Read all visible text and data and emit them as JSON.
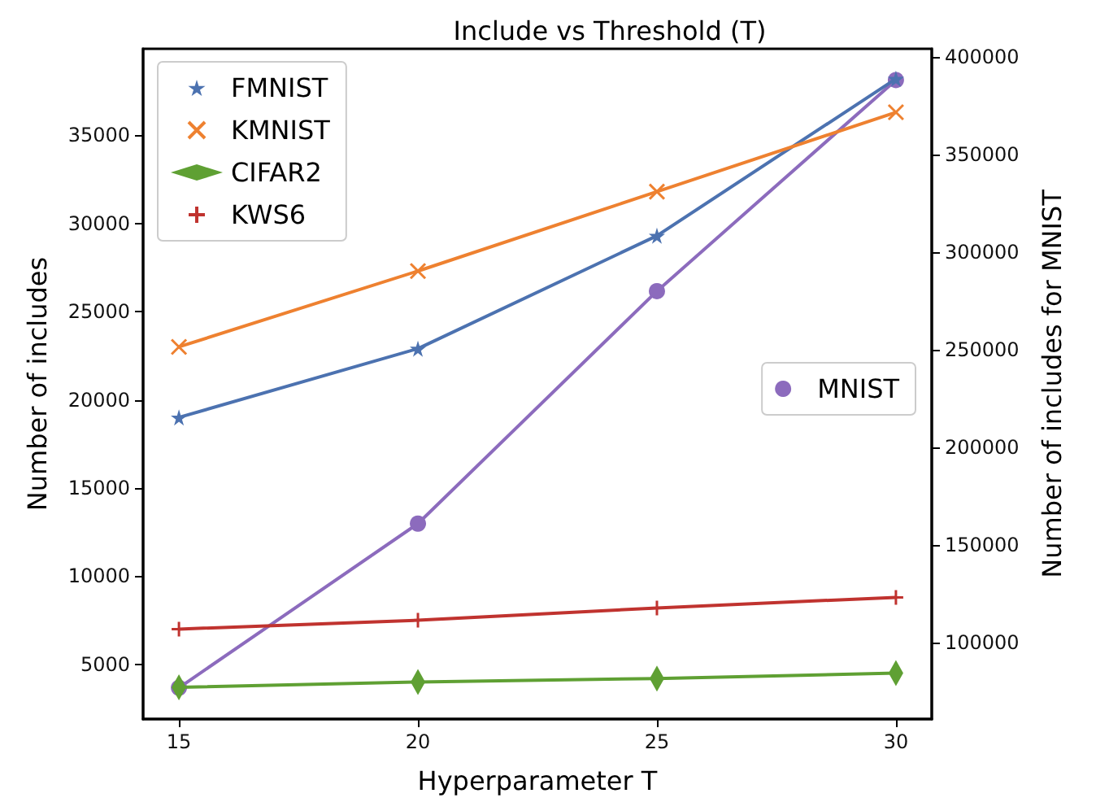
{
  "chart_data": {
    "type": "line",
    "title": "Include vs Threshold (T)",
    "xlabel": "Hyperparameter T",
    "ylabel": "Number of includes",
    "y2label": "Number of includes for MNIST",
    "x": [
      15,
      20,
      25,
      30
    ],
    "xlim": [
      14.25,
      30.75
    ],
    "xticks": [
      15,
      20,
      25,
      30
    ],
    "ylim": [
      1900,
      39900
    ],
    "yticks": [
      5000,
      10000,
      15000,
      20000,
      25000,
      30000,
      35000
    ],
    "y2lim": [
      61000,
      404000
    ],
    "y2ticks": [
      100000,
      150000,
      200000,
      250000,
      300000,
      350000,
      400000
    ],
    "grid": false,
    "legend": "top left",
    "series": [
      {
        "name": "FMNIST",
        "color": "#4c72b0",
        "marker": "star",
        "values": [
          19000,
          22900,
          29300,
          38200
        ]
      },
      {
        "name": "KMNIST",
        "color": "#ee8130",
        "marker": "cross",
        "values": [
          23000,
          27300,
          31800,
          36300
        ]
      },
      {
        "name": "CIFAR2",
        "color": "#5fa033",
        "marker": "diamond",
        "values": [
          3700,
          4000,
          4200,
          4500
        ]
      },
      {
        "name": "KWS6",
        "color": "#c0332f",
        "marker": "plus",
        "values": [
          7000,
          7500,
          8200,
          8800
        ]
      },
      {
        "name": "MNIST",
        "color": "#8c6bbd",
        "marker": "circle",
        "axis": "y2",
        "values": [
          77000,
          161000,
          280000,
          388000
        ]
      }
    ]
  }
}
